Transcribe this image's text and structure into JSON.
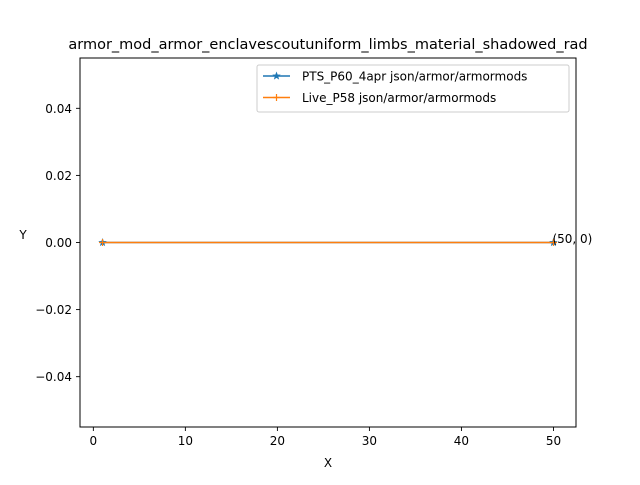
{
  "chart_data": {
    "type": "line",
    "title": "armor_mod_armor_enclavescoutuniform_limbs_material_shadowed_rad",
    "xlabel": "X",
    "ylabel": "Y",
    "xlim": [
      -1.45,
      52.45
    ],
    "ylim": [
      -0.055,
      0.055
    ],
    "x_ticks": [
      0,
      10,
      20,
      30,
      40,
      50
    ],
    "x_tick_labels": [
      "0",
      "10",
      "20",
      "30",
      "40",
      "50"
    ],
    "y_ticks": [
      -0.04,
      -0.02,
      0.0,
      0.02,
      0.04
    ],
    "y_tick_labels": [
      "−0.04",
      "−0.02",
      "0.00",
      "0.02",
      "0.04"
    ],
    "grid": false,
    "legend_position": "upper-right",
    "series": [
      {
        "name": "PTS_P60_4apr json/armor/armormods",
        "color": "#1f77b4",
        "marker": "star",
        "x": [
          1,
          50
        ],
        "y": [
          0,
          0
        ]
      },
      {
        "name": "Live_P58 json/armor/armormods",
        "color": "#ff7f0e",
        "marker": "plus",
        "x": [
          1,
          50
        ],
        "y": [
          0,
          0
        ]
      }
    ],
    "annotations": [
      {
        "text": "(50, 0)",
        "x": 50,
        "y": 0
      }
    ]
  }
}
